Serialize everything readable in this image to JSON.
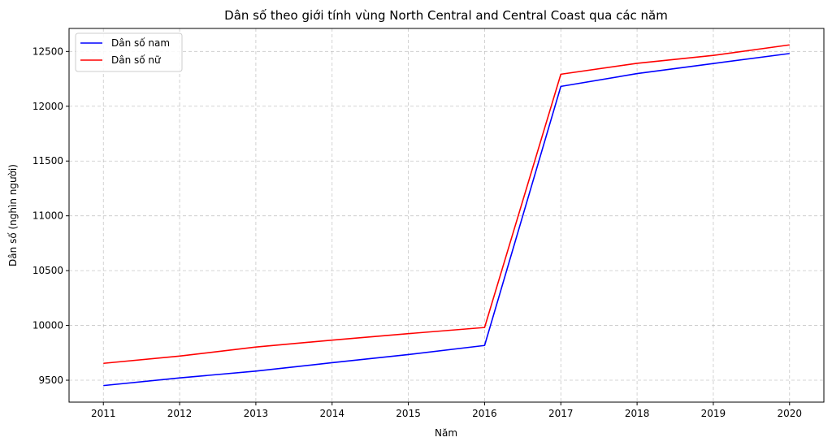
{
  "chart_data": {
    "type": "line",
    "title": "Dân số theo giới tính vùng North Central and Central Coast qua các năm",
    "xlabel": "Năm",
    "ylabel": "Dân số (nghìn người)",
    "x": [
      2011,
      2012,
      2013,
      2014,
      2015,
      2016,
      2017,
      2018,
      2019,
      2020
    ],
    "series": [
      {
        "name": "Dân số nam",
        "color": "#0000ff",
        "values": [
          9451,
          9521,
          9583,
          9660,
          9734,
          9817,
          12181,
          12298,
          12390,
          12481
        ]
      },
      {
        "name": "Dân số nữ",
        "color": "#ff0000",
        "values": [
          9654,
          9720,
          9803,
          9866,
          9925,
          9981,
          12292,
          12392,
          12464,
          12560
        ]
      }
    ],
    "ylim": [
      9300,
      12710
    ],
    "xlim": [
      2010.55,
      2020.45
    ],
    "yticks": [
      9500,
      10000,
      10500,
      11000,
      11500,
      12000,
      12500
    ],
    "xticks": [
      2011,
      2012,
      2013,
      2014,
      2015,
      2016,
      2017,
      2018,
      2019,
      2020
    ],
    "grid": true,
    "legend": "top-left"
  }
}
